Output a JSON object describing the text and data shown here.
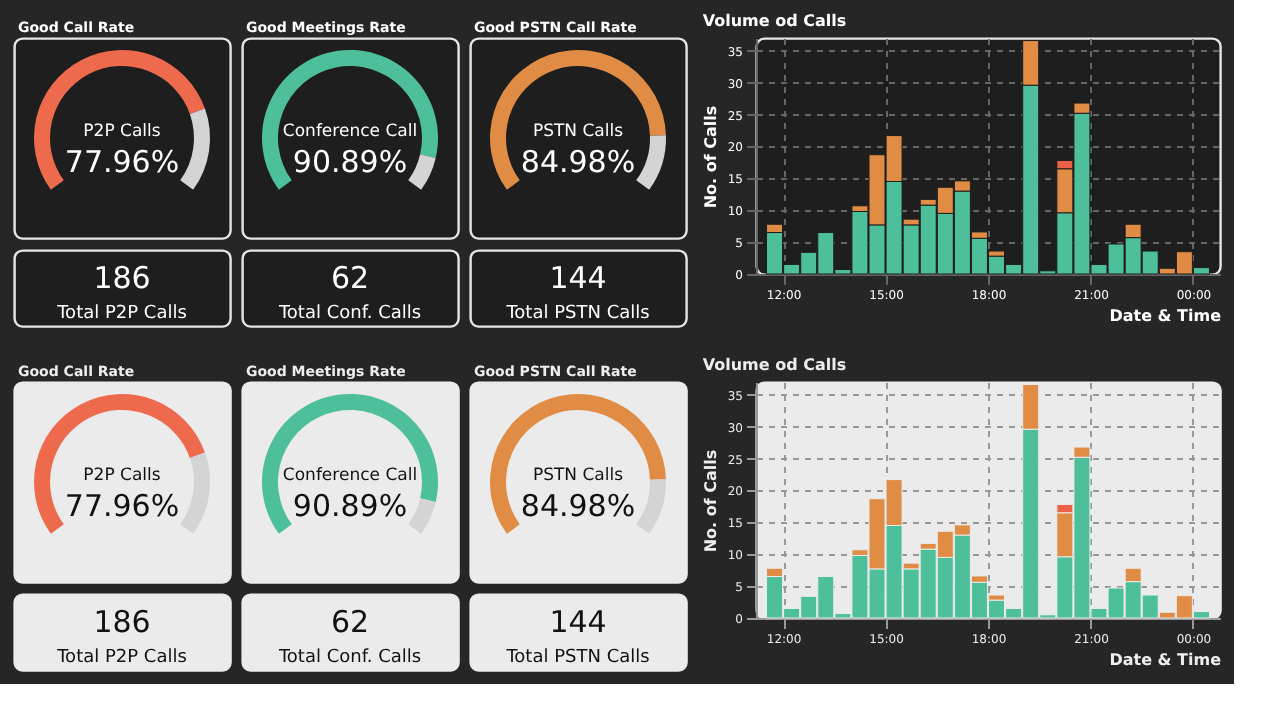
{
  "chart_data": [
    {
      "type": "donut",
      "title": "Good Call Rate",
      "categories": [
        "P2P Calls",
        null
      ],
      "values": [
        77.96,
        22.04
      ],
      "colors": [
        "#ee6a4d",
        "#d4d4d4"
      ],
      "value_labels": [
        "77.96%",
        null
      ]
    },
    {
      "type": "donut",
      "title": "Good Meetings Rate",
      "categories": [
        "Conference Call",
        null
      ],
      "values": [
        90.89,
        9.11
      ],
      "colors": [
        "#4dbf9b",
        "#d4d4d4"
      ],
      "value_labels": [
        "90.89%",
        null
      ]
    },
    {
      "type": "donut",
      "title": "Good PSTN Call Rate",
      "categories": [
        "PSTN Calls",
        null
      ],
      "values": [
        84.98,
        15.02
      ],
      "colors": [
        "#e08c45",
        "#d4d4d4"
      ],
      "value_labels": [
        "84.98%",
        null
      ]
    },
    {
      "type": "bar",
      "stacked": true,
      "title": "Volume od Calls",
      "xlabel": "Date & Time",
      "ylabel": "No. of Calls",
      "xlim": [
        11.5,
        24.5
      ],
      "ylim": [
        0,
        37
      ],
      "xticks": [
        {
          "value": 12,
          "label": "12:00"
        },
        {
          "value": 15,
          "label": "15:00"
        },
        {
          "value": 18,
          "label": "18:00"
        },
        {
          "value": 21,
          "label": "21:00"
        },
        {
          "value": 24,
          "label": "00:00"
        }
      ],
      "yticks": [
        0,
        5,
        10,
        15,
        20,
        25,
        30,
        35
      ],
      "grid": true,
      "x": [
        11.75,
        12.25,
        12.75,
        13.25,
        13.75,
        14.25,
        14.75,
        15.25,
        15.75,
        16.25,
        16.75,
        17.25,
        17.75,
        18.25,
        18.75,
        19.25,
        19.75,
        20.25,
        20.75,
        21.25,
        21.75,
        22.25,
        22.75,
        23.25,
        23.75,
        24.25
      ],
      "series": [
        {
          "color": "#4dbf9b",
          "values": [
            6.5,
            1.5,
            3.4,
            6.5,
            0.7,
            9.8,
            7.7,
            14.5,
            7.7,
            10.8,
            9.5,
            13.0,
            5.6,
            2.8,
            1.5,
            29.6,
            0.5,
            9.6,
            25.2,
            1.5,
            4.7,
            5.7,
            3.6,
            null,
            null,
            1.0
          ]
        },
        {
          "color": "#e08c45",
          "values": [
            1.3,
            null,
            null,
            null,
            null,
            0.9,
            11.0,
            7.2,
            0.9,
            0.9,
            4.1,
            1.6,
            1.0,
            0.8,
            null,
            7.0,
            null,
            6.9,
            1.6,
            null,
            null,
            2.1,
            null,
            0.9,
            3.5,
            null
          ]
        },
        {
          "color": "#ee6048",
          "values": [
            null,
            null,
            null,
            null,
            null,
            null,
            null,
            null,
            null,
            null,
            null,
            null,
            null,
            null,
            null,
            null,
            null,
            1.3,
            null,
            null,
            null,
            null,
            null,
            null,
            null,
            null
          ]
        }
      ]
    },
    {
      "type": "other",
      "categories": [
        "Total P2P Calls"
      ],
      "values": [
        186
      ],
      "data_labels": true
    },
    {
      "type": "other",
      "categories": [
        "Total Conf. Calls"
      ],
      "values": [
        62
      ],
      "data_labels": true
    },
    {
      "type": "other",
      "categories": [
        "Total PSTN Calls"
      ],
      "values": [
        144
      ],
      "data_labels": true
    },
    {
      "type": "donut",
      "title": "Good Call Rate",
      "categories": [
        "P2P Calls",
        null
      ],
      "values": [
        77.96,
        22.04
      ],
      "colors": [
        "#ee6a4d",
        "#d4d4d4"
      ],
      "value_labels": [
        "77.96%",
        null
      ]
    },
    {
      "type": "donut",
      "title": "Good Meetings Rate",
      "categories": [
        "Conference Call",
        null
      ],
      "values": [
        90.89,
        9.11
      ],
      "colors": [
        "#4dbf9b",
        "#d4d4d4"
      ],
      "value_labels": [
        "90.89%",
        null
      ]
    },
    {
      "type": "donut",
      "title": "Good PSTN Call Rate",
      "categories": [
        "PSTN Calls",
        null
      ],
      "values": [
        84.98,
        15.02
      ],
      "colors": [
        "#e08c45",
        "#d4d4d4"
      ],
      "value_labels": [
        "84.98%",
        null
      ]
    },
    {
      "type": "bar",
      "stacked": true,
      "title": "Volume od Calls",
      "xlabel": "Date & Time",
      "ylabel": "No. of Calls",
      "xlim": [
        11.5,
        24.5
      ],
      "ylim": [
        0,
        37
      ],
      "xticks": [
        {
          "value": 12,
          "label": "12:00"
        },
        {
          "value": 15,
          "label": "15:00"
        },
        {
          "value": 18,
          "label": "18:00"
        },
        {
          "value": 21,
          "label": "21:00"
        },
        {
          "value": 24,
          "label": "00:00"
        }
      ],
      "yticks": [
        0,
        5,
        10,
        15,
        20,
        25,
        30,
        35
      ],
      "grid": true,
      "x": [
        11.75,
        12.25,
        12.75,
        13.25,
        13.75,
        14.25,
        14.75,
        15.25,
        15.75,
        16.25,
        16.75,
        17.25,
        17.75,
        18.25,
        18.75,
        19.25,
        19.75,
        20.25,
        20.75,
        21.25,
        21.75,
        22.25,
        22.75,
        23.25,
        23.75,
        24.25
      ],
      "series": [
        {
          "color": "#4dbf9b",
          "values": [
            6.5,
            1.5,
            3.4,
            6.5,
            0.7,
            9.8,
            7.7,
            14.5,
            7.7,
            10.8,
            9.5,
            13.0,
            5.6,
            2.8,
            1.5,
            29.6,
            0.5,
            9.6,
            25.2,
            1.5,
            4.7,
            5.7,
            3.6,
            null,
            null,
            1.0
          ]
        },
        {
          "color": "#e08c45",
          "values": [
            1.3,
            null,
            null,
            null,
            null,
            0.9,
            11.0,
            7.2,
            0.9,
            0.9,
            4.1,
            1.6,
            1.0,
            0.8,
            null,
            7.0,
            null,
            6.9,
            1.6,
            null,
            null,
            2.1,
            null,
            0.9,
            3.5,
            null
          ]
        },
        {
          "color": "#ee6048",
          "values": [
            null,
            null,
            null,
            null,
            null,
            null,
            null,
            null,
            null,
            null,
            null,
            null,
            null,
            null,
            null,
            null,
            null,
            1.3,
            null,
            null,
            null,
            null,
            null,
            null,
            null,
            null
          ]
        }
      ]
    },
    {
      "type": "other",
      "categories": [
        "Total P2P Calls"
      ],
      "values": [
        186
      ],
      "data_labels": true
    },
    {
      "type": "other",
      "categories": [
        "Total Conf. Calls"
      ],
      "values": [
        62
      ],
      "data_labels": true
    },
    {
      "type": "other",
      "categories": [
        "Total PSTN Calls"
      ],
      "values": [
        144
      ],
      "data_labels": true
    }
  ]
}
